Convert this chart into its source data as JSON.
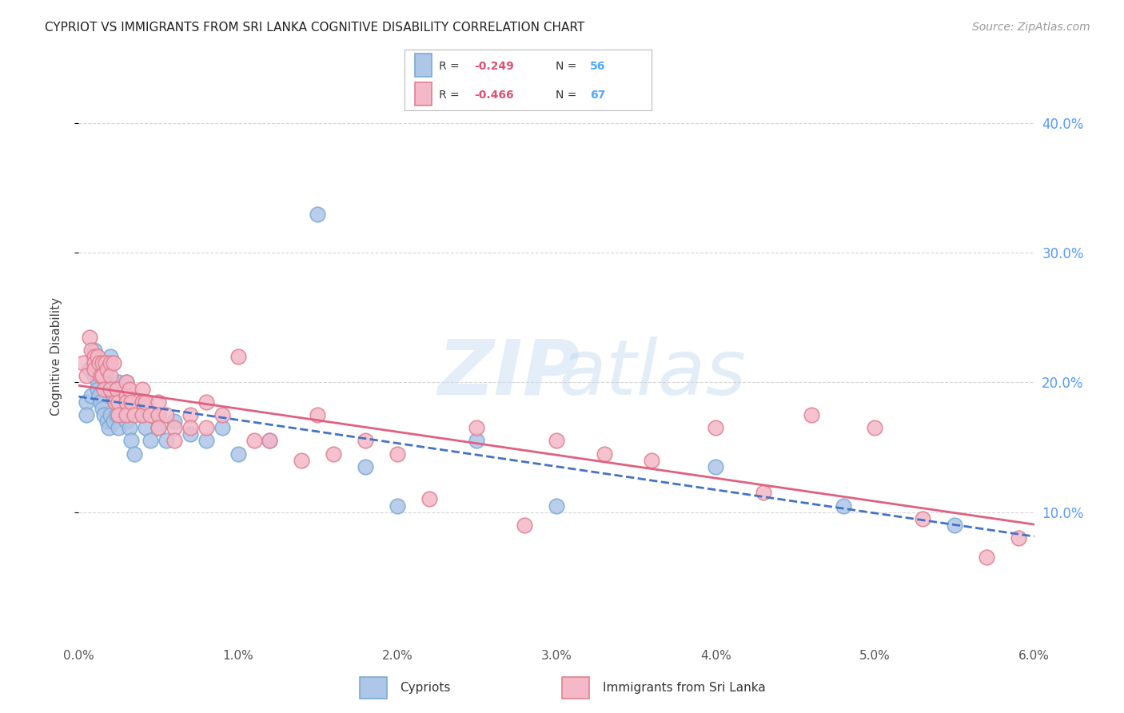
{
  "title": "CYPRIOT VS IMMIGRANTS FROM SRI LANKA COGNITIVE DISABILITY CORRELATION CHART",
  "source": "Source: ZipAtlas.com",
  "ylabel": "Cognitive Disability",
  "xlim": [
    0.0,
    0.06
  ],
  "ylim": [
    0.0,
    0.44
  ],
  "yticks": [
    0.1,
    0.2,
    0.3,
    0.4
  ],
  "xticks": [
    0.0,
    0.01,
    0.02,
    0.03,
    0.04,
    0.05,
    0.06
  ],
  "grid_color": "#cccccc",
  "background_color": "#ffffff",
  "series": [
    {
      "label": "Cypriots",
      "color_fill": "#aec6e8",
      "color_edge": "#7aaad4",
      "line_color": "#4472c4",
      "line_style": "--",
      "R": -0.249,
      "N": 56,
      "x": [
        0.0005,
        0.0005,
        0.0007,
        0.0008,
        0.001,
        0.001,
        0.001,
        0.001,
        0.0012,
        0.0012,
        0.0013,
        0.0014,
        0.0015,
        0.0015,
        0.0016,
        0.0016,
        0.0017,
        0.0018,
        0.0018,
        0.0019,
        0.002,
        0.002,
        0.002,
        0.0022,
        0.0022,
        0.0023,
        0.0024,
        0.0025,
        0.0025,
        0.003,
        0.003,
        0.003,
        0.0032,
        0.0033,
        0.0035,
        0.004,
        0.004,
        0.0042,
        0.0045,
        0.005,
        0.005,
        0.0055,
        0.006,
        0.007,
        0.008,
        0.009,
        0.01,
        0.012,
        0.015,
        0.018,
        0.02,
        0.025,
        0.03,
        0.04,
        0.048,
        0.055
      ],
      "y": [
        0.185,
        0.175,
        0.21,
        0.19,
        0.225,
        0.215,
        0.21,
        0.205,
        0.2,
        0.195,
        0.19,
        0.185,
        0.215,
        0.18,
        0.175,
        0.205,
        0.2,
        0.195,
        0.17,
        0.165,
        0.22,
        0.195,
        0.175,
        0.19,
        0.17,
        0.185,
        0.175,
        0.2,
        0.165,
        0.2,
        0.185,
        0.17,
        0.165,
        0.155,
        0.145,
        0.185,
        0.175,
        0.165,
        0.155,
        0.175,
        0.165,
        0.155,
        0.17,
        0.16,
        0.155,
        0.165,
        0.145,
        0.155,
        0.33,
        0.135,
        0.105,
        0.155,
        0.105,
        0.135,
        0.105,
        0.09
      ]
    },
    {
      "label": "Immigrants from Sri Lanka",
      "color_fill": "#f4b8c8",
      "color_edge": "#e08090",
      "line_color": "#e06080",
      "line_style": "-",
      "R": -0.466,
      "N": 67,
      "x": [
        0.0003,
        0.0005,
        0.0007,
        0.0008,
        0.001,
        0.001,
        0.001,
        0.0012,
        0.0013,
        0.0014,
        0.0015,
        0.0015,
        0.0016,
        0.0017,
        0.0018,
        0.002,
        0.002,
        0.002,
        0.0022,
        0.0023,
        0.0024,
        0.0025,
        0.0025,
        0.003,
        0.003,
        0.003,
        0.003,
        0.0032,
        0.0033,
        0.0035,
        0.004,
        0.004,
        0.004,
        0.0042,
        0.0045,
        0.005,
        0.005,
        0.005,
        0.0055,
        0.006,
        0.006,
        0.007,
        0.007,
        0.008,
        0.008,
        0.009,
        0.01,
        0.011,
        0.012,
        0.014,
        0.015,
        0.016,
        0.018,
        0.02,
        0.022,
        0.025,
        0.028,
        0.03,
        0.033,
        0.036,
        0.04,
        0.043,
        0.046,
        0.05,
        0.053,
        0.057,
        0.059
      ],
      "y": [
        0.215,
        0.205,
        0.235,
        0.225,
        0.22,
        0.215,
        0.21,
        0.22,
        0.215,
        0.205,
        0.215,
        0.205,
        0.195,
        0.215,
        0.21,
        0.215,
        0.205,
        0.195,
        0.215,
        0.185,
        0.195,
        0.185,
        0.175,
        0.2,
        0.19,
        0.185,
        0.175,
        0.195,
        0.185,
        0.175,
        0.195,
        0.185,
        0.175,
        0.185,
        0.175,
        0.185,
        0.175,
        0.165,
        0.175,
        0.165,
        0.155,
        0.175,
        0.165,
        0.185,
        0.165,
        0.175,
        0.22,
        0.155,
        0.155,
        0.14,
        0.175,
        0.145,
        0.155,
        0.145,
        0.11,
        0.165,
        0.09,
        0.155,
        0.145,
        0.14,
        0.165,
        0.115,
        0.175,
        0.165,
        0.095,
        0.065,
        0.08
      ]
    }
  ],
  "legend_R_color": "#e05070",
  "legend_N_color": "#4da6ff",
  "title_fontsize": 11,
  "axis_label_fontsize": 11,
  "tick_fontsize": 11,
  "source_fontsize": 10
}
